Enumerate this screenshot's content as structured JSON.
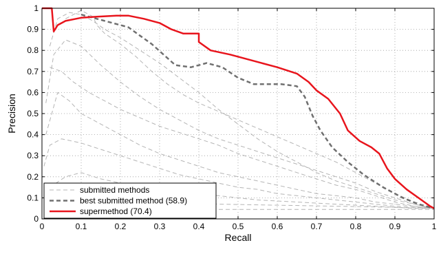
{
  "chart_data": {
    "type": "line",
    "xlabel": "Recall",
    "ylabel": "Precision",
    "xlim": [
      0,
      1
    ],
    "ylim": [
      0,
      1
    ],
    "grid": true,
    "grid_style": "dotted",
    "legend_position": "bottom-left",
    "x_ticks": [
      "0",
      "0.1",
      "0.2",
      "0.3",
      "0.4",
      "0.5",
      "0.6",
      "0.7",
      "0.8",
      "0.9",
      "1"
    ],
    "y_ticks": [
      "0",
      "0.1",
      "0.2",
      "0.3",
      "0.4",
      "0.5",
      "0.6",
      "0.7",
      "0.8",
      "0.9",
      "1"
    ],
    "series": [
      {
        "name": "supermethod (70.4)",
        "style": "solid",
        "color": "#e8141c",
        "points": [
          [
            0,
            1
          ],
          [
            0.025,
            1
          ],
          [
            0.03,
            0.89
          ],
          [
            0.04,
            0.92
          ],
          [
            0.06,
            0.94
          ],
          [
            0.1,
            0.955
          ],
          [
            0.14,
            0.96
          ],
          [
            0.19,
            0.965
          ],
          [
            0.22,
            0.965
          ],
          [
            0.26,
            0.95
          ],
          [
            0.3,
            0.93
          ],
          [
            0.33,
            0.9
          ],
          [
            0.36,
            0.88
          ],
          [
            0.4,
            0.88
          ],
          [
            0.4,
            0.84
          ],
          [
            0.43,
            0.8
          ],
          [
            0.48,
            0.78
          ],
          [
            0.52,
            0.76
          ],
          [
            0.56,
            0.74
          ],
          [
            0.6,
            0.72
          ],
          [
            0.65,
            0.69
          ],
          [
            0.68,
            0.65
          ],
          [
            0.7,
            0.61
          ],
          [
            0.73,
            0.57
          ],
          [
            0.76,
            0.5
          ],
          [
            0.78,
            0.42
          ],
          [
            0.81,
            0.37
          ],
          [
            0.84,
            0.34
          ],
          [
            0.86,
            0.31
          ],
          [
            0.88,
            0.24
          ],
          [
            0.9,
            0.19
          ],
          [
            0.93,
            0.14
          ],
          [
            0.96,
            0.1
          ],
          [
            0.99,
            0.06
          ],
          [
            1,
            0.05
          ]
        ]
      },
      {
        "name": "best submitted method (58.9)",
        "style": "dashed",
        "color": "#707070",
        "points": [
          [
            0.1,
            0.97
          ],
          [
            0.14,
            0.95
          ],
          [
            0.18,
            0.93
          ],
          [
            0.22,
            0.91
          ],
          [
            0.25,
            0.87
          ],
          [
            0.28,
            0.83
          ],
          [
            0.31,
            0.78
          ],
          [
            0.34,
            0.73
          ],
          [
            0.38,
            0.72
          ],
          [
            0.42,
            0.74
          ],
          [
            0.46,
            0.72
          ],
          [
            0.5,
            0.67
          ],
          [
            0.54,
            0.64
          ],
          [
            0.58,
            0.64
          ],
          [
            0.61,
            0.64
          ],
          [
            0.65,
            0.63
          ],
          [
            0.67,
            0.58
          ],
          [
            0.69,
            0.49
          ],
          [
            0.71,
            0.42
          ],
          [
            0.74,
            0.34
          ],
          [
            0.78,
            0.27
          ],
          [
            0.82,
            0.21
          ],
          [
            0.87,
            0.15
          ],
          [
            0.92,
            0.1
          ],
          [
            0.96,
            0.07
          ],
          [
            1,
            0.05
          ]
        ]
      },
      {
        "name": "submitted methods",
        "style": "dashed-thin",
        "color": "#b4b4b4",
        "curves": [
          [
            [
              0.02,
              0.82
            ],
            [
              0.04,
              0.95
            ],
            [
              0.07,
              0.98
            ],
            [
              0.1,
              0.97
            ],
            [
              0.13,
              0.94
            ],
            [
              0.16,
              0.9
            ],
            [
              0.2,
              0.86
            ],
            [
              0.25,
              0.8
            ],
            [
              0.3,
              0.74
            ],
            [
              0.35,
              0.67
            ],
            [
              0.4,
              0.6
            ],
            [
              0.45,
              0.52
            ],
            [
              0.5,
              0.45
            ],
            [
              0.55,
              0.38
            ],
            [
              0.6,
              0.32
            ],
            [
              0.65,
              0.27
            ],
            [
              0.7,
              0.22
            ],
            [
              0.75,
              0.18
            ],
            [
              0.8,
              0.15
            ],
            [
              0.85,
              0.12
            ],
            [
              0.9,
              0.09
            ],
            [
              0.95,
              0.07
            ],
            [
              1,
              0.05
            ]
          ],
          [
            [
              0.01,
              0.55
            ],
            [
              0.03,
              0.78
            ],
            [
              0.06,
              0.85
            ],
            [
              0.1,
              0.82
            ],
            [
              0.15,
              0.73
            ],
            [
              0.2,
              0.65
            ],
            [
              0.25,
              0.58
            ],
            [
              0.3,
              0.52
            ],
            [
              0.35,
              0.47
            ],
            [
              0.4,
              0.42
            ],
            [
              0.45,
              0.38
            ],
            [
              0.5,
              0.35
            ],
            [
              0.55,
              0.32
            ],
            [
              0.6,
              0.29
            ],
            [
              0.65,
              0.26
            ],
            [
              0.7,
              0.23
            ],
            [
              0.75,
              0.2
            ],
            [
              0.8,
              0.17
            ],
            [
              0.85,
              0.13
            ],
            [
              0.9,
              0.1
            ],
            [
              0.95,
              0.07
            ],
            [
              1,
              0.05
            ]
          ],
          [
            [
              0.02,
              0.72
            ],
            [
              0.05,
              0.7
            ],
            [
              0.08,
              0.65
            ],
            [
              0.12,
              0.6
            ],
            [
              0.16,
              0.56
            ],
            [
              0.2,
              0.52
            ],
            [
              0.25,
              0.48
            ],
            [
              0.3,
              0.44
            ],
            [
              0.35,
              0.41
            ],
            [
              0.4,
              0.38
            ],
            [
              0.45,
              0.35
            ],
            [
              0.5,
              0.31
            ],
            [
              0.55,
              0.28
            ],
            [
              0.6,
              0.25
            ],
            [
              0.65,
              0.22
            ],
            [
              0.7,
              0.19
            ],
            [
              0.75,
              0.16
            ],
            [
              0.8,
              0.14
            ],
            [
              0.85,
              0.11
            ],
            [
              0.9,
              0.08
            ],
            [
              0.95,
              0.06
            ],
            [
              1,
              0.05
            ]
          ],
          [
            [
              0.01,
              0.4
            ],
            [
              0.04,
              0.6
            ],
            [
              0.07,
              0.56
            ],
            [
              0.1,
              0.5
            ],
            [
              0.15,
              0.45
            ],
            [
              0.2,
              0.4
            ],
            [
              0.25,
              0.35
            ],
            [
              0.3,
              0.31
            ],
            [
              0.35,
              0.28
            ],
            [
              0.4,
              0.25
            ],
            [
              0.45,
              0.22
            ],
            [
              0.5,
              0.2
            ],
            [
              0.55,
              0.18
            ],
            [
              0.6,
              0.16
            ],
            [
              0.65,
              0.14
            ],
            [
              0.7,
              0.12
            ],
            [
              0.75,
              0.11
            ],
            [
              0.8,
              0.1
            ],
            [
              0.85,
              0.08
            ],
            [
              0.9,
              0.07
            ],
            [
              0.95,
              0.06
            ],
            [
              1,
              0.05
            ]
          ],
          [
            [
              0.005,
              0.25
            ],
            [
              0.02,
              0.35
            ],
            [
              0.05,
              0.38
            ],
            [
              0.1,
              0.36
            ],
            [
              0.15,
              0.33
            ],
            [
              0.2,
              0.3
            ],
            [
              0.25,
              0.27
            ],
            [
              0.3,
              0.24
            ],
            [
              0.35,
              0.21
            ],
            [
              0.4,
              0.19
            ],
            [
              0.45,
              0.17
            ],
            [
              0.5,
              0.15
            ],
            [
              0.55,
              0.14
            ],
            [
              0.6,
              0.12
            ],
            [
              0.65,
              0.11
            ],
            [
              0.7,
              0.1
            ],
            [
              0.75,
              0.09
            ],
            [
              0.8,
              0.08
            ],
            [
              0.85,
              0.07
            ],
            [
              0.9,
              0.06
            ],
            [
              0.95,
              0.055
            ],
            [
              1,
              0.05
            ]
          ],
          [
            [
              0.02,
              0.15
            ],
            [
              0.06,
              0.2
            ],
            [
              0.1,
              0.22
            ],
            [
              0.15,
              0.19
            ],
            [
              0.2,
              0.17
            ],
            [
              0.25,
              0.15
            ],
            [
              0.3,
              0.14
            ],
            [
              0.35,
              0.13
            ],
            [
              0.4,
              0.12
            ],
            [
              0.45,
              0.11
            ],
            [
              0.5,
              0.1
            ],
            [
              0.55,
              0.09
            ],
            [
              0.6,
              0.085
            ],
            [
              0.65,
              0.08
            ],
            [
              0.7,
              0.075
            ],
            [
              0.75,
              0.07
            ],
            [
              0.8,
              0.065
            ],
            [
              0.85,
              0.06
            ],
            [
              0.9,
              0.055
            ],
            [
              0.95,
              0.05
            ],
            [
              1,
              0.05
            ]
          ],
          [
            [
              0.05,
              0.1
            ],
            [
              0.15,
              0.09
            ],
            [
              0.3,
              0.08
            ],
            [
              0.45,
              0.07
            ],
            [
              0.6,
              0.065
            ],
            [
              0.75,
              0.06
            ],
            [
              0.9,
              0.055
            ],
            [
              1,
              0.05
            ]
          ],
          [
            [
              0.1,
              0.05
            ],
            [
              0.3,
              0.045
            ],
            [
              0.5,
              0.045
            ],
            [
              0.7,
              0.045
            ],
            [
              0.9,
              0.045
            ],
            [
              1,
              0.045
            ]
          ],
          [
            [
              0.06,
              0.95
            ],
            [
              0.1,
              0.99
            ],
            [
              0.13,
              0.96
            ],
            [
              0.14,
              0.92
            ],
            [
              0.16,
              0.88
            ],
            [
              0.2,
              0.83
            ],
            [
              0.24,
              0.77
            ],
            [
              0.28,
              0.7
            ],
            [
              0.32,
              0.64
            ],
            [
              0.36,
              0.59
            ],
            [
              0.4,
              0.55
            ],
            [
              0.45,
              0.51
            ],
            [
              0.5,
              0.47
            ],
            [
              0.55,
              0.43
            ],
            [
              0.6,
              0.39
            ],
            [
              0.65,
              0.35
            ],
            [
              0.7,
              0.31
            ],
            [
              0.75,
              0.27
            ],
            [
              0.8,
              0.22
            ],
            [
              0.85,
              0.17
            ],
            [
              0.9,
              0.12
            ],
            [
              0.95,
              0.08
            ],
            [
              1,
              0.05
            ]
          ]
        ]
      }
    ]
  }
}
